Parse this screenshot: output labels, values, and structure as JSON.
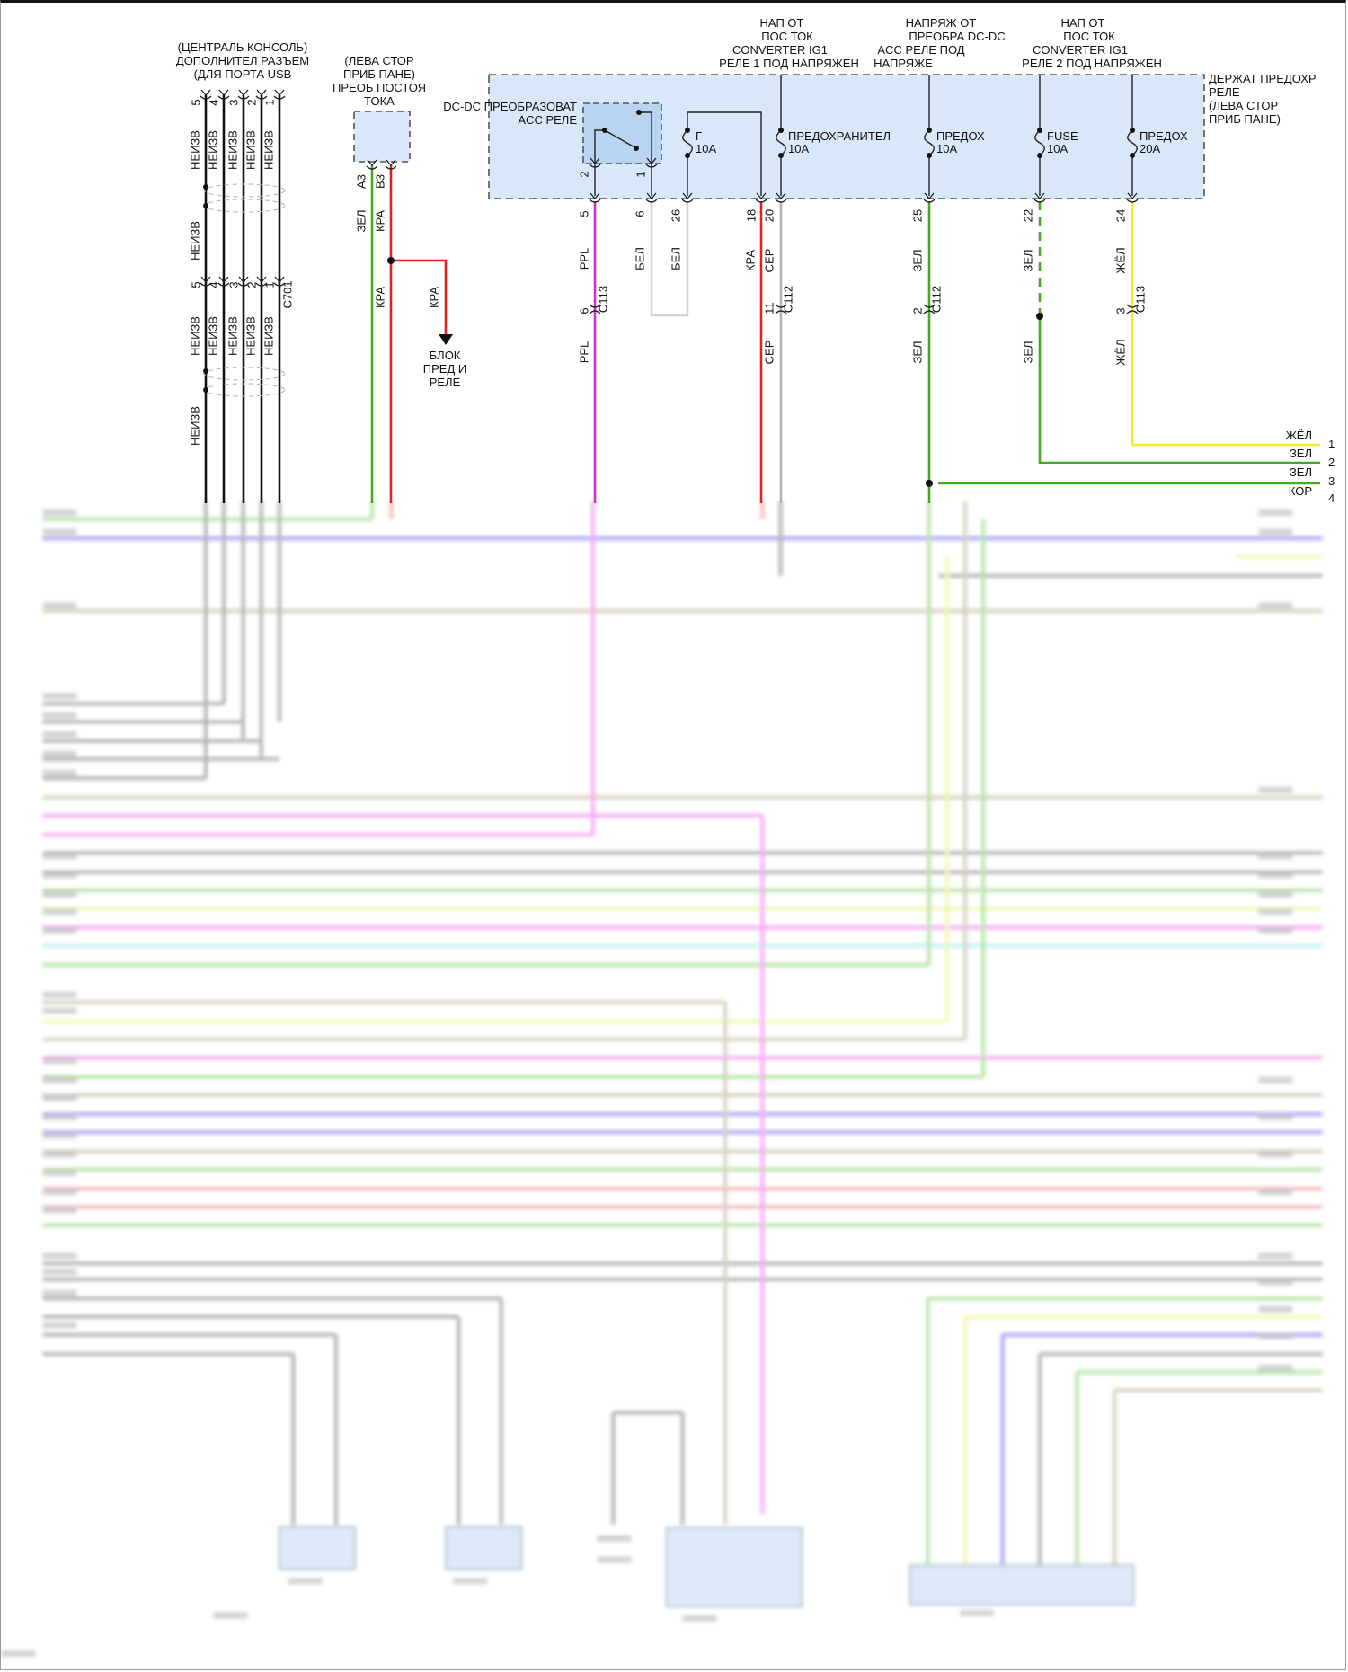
{
  "usb_connector": {
    "title": [
      "(ЦЕНТРАЛЬ КОНСОЛЬ)",
      "ДОПОЛНИТЕЛ РАЗЪЕМ",
      "(ДЛЯ ПОРТА USB"
    ],
    "pins": [
      "5",
      "4",
      "3",
      "2",
      "1"
    ],
    "wire_label": "НЕИЗВ",
    "inline_connector": "C701",
    "wire_color": "#111111"
  },
  "dc_converter": {
    "title": [
      "(ЛЕВА СТОР",
      "ПРИБ ПАНЕ)",
      "ПРЕОБ ПОСТОЯ",
      "ТОКА"
    ],
    "pins": [
      "A3",
      "B3"
    ],
    "wire_labels": [
      "ЗЕЛ",
      "КРА"
    ],
    "lower_label": "КРА",
    "branch_label": "КРА",
    "branch_destination": [
      "БЛОК",
      "ПРЕД И",
      "РЕЛЕ"
    ]
  },
  "fuse_block": {
    "title": [
      "ДЕРЖАТ ПРЕДОХР",
      "РЕЛЕ",
      "(ЛЕВА СТОР",
      "ПРИБ ПАНЕ)"
    ],
    "relay": {
      "label": [
        "DC-DC ПРЕОБРАЗОВАТ",
        "ACC РЕЛЕ"
      ],
      "pins": [
        "2",
        "1"
      ]
    },
    "fuses": [
      {
        "name": "Г",
        "rating": "10A"
      },
      {
        "name": "ПРЕДОХРАНИТЕЛ",
        "rating": "10A"
      },
      {
        "name": "ПРЕДОХ",
        "rating": "10A"
      },
      {
        "name": "FUSE",
        "rating": "10A"
      },
      {
        "name": "ПРЕДОХ",
        "rating": "20A"
      }
    ],
    "feed_notes": [
      [
        "НАП ОТ",
        "ПОС ТОК",
        "CONVERTER IG1",
        "РЕЛЕ 1 ПОД НАПРЯЖЕН"
      ],
      [
        "НАПРЯЖ ОТ",
        "ПРЕОБРА DC-DC",
        "ACC РЕЛЕ ПОД",
        "НАПРЯЖЕ"
      ],
      [
        "НАП ОТ",
        "ПОС ТОК",
        "CONVERTER IG1",
        "РЕЛЕ 2 ПОД НАПРЯЖЕН"
      ]
    ]
  },
  "circuits": {
    "ppl": {
      "pin": "5",
      "label": "PPL",
      "connector": "C113",
      "conn_pin": "6",
      "lower_label": "PPL",
      "color": "#cc33cc"
    },
    "bel": {
      "pin": "6",
      "label": "БЕЛ",
      "color": "#d0d0d0"
    },
    "bel26": {
      "pin": "26",
      "label": "БЕЛ"
    },
    "kra18": {
      "pin": "18",
      "label": "КРА",
      "color": "#dd2222"
    },
    "ser20": {
      "pin": "20",
      "label": "СЕР",
      "connector": "C112",
      "conn_pin": "11",
      "lower_label": "СЕР",
      "color": "#b0b0b0"
    },
    "zel25": {
      "pin": "25",
      "label": "ЗЕЛ",
      "connector": "C112",
      "conn_pin": "2",
      "lower_label": "ЗЕЛ",
      "color": "#44aa22"
    },
    "zel22": {
      "pin": "22",
      "label": "ЗЕЛ",
      "lower_label": "ЗЕЛ"
    },
    "zhel24": {
      "pin": "24",
      "label": "ЖЁЛ",
      "connector": "C113",
      "conn_pin": "3",
      "lower_label": "ЖЁЛ",
      "color": "#eeee22"
    }
  },
  "output_connector": [
    {
      "pin": "1",
      "color_label": "ЖЁЛ"
    },
    {
      "pin": "2",
      "color_label": "ЗЕЛ"
    },
    {
      "pin": "3",
      "color_label": "ЗЕЛ"
    },
    {
      "pin": "4",
      "color_label": "КОР"
    }
  ],
  "blurred_wire_colors": [
    "#9fd88a",
    "#8c8cf0",
    "#f2f29a",
    "#c9bfa8",
    "#9a9a9a",
    "#f08cf0",
    "#a8f0f0",
    "#f0a0a0"
  ]
}
